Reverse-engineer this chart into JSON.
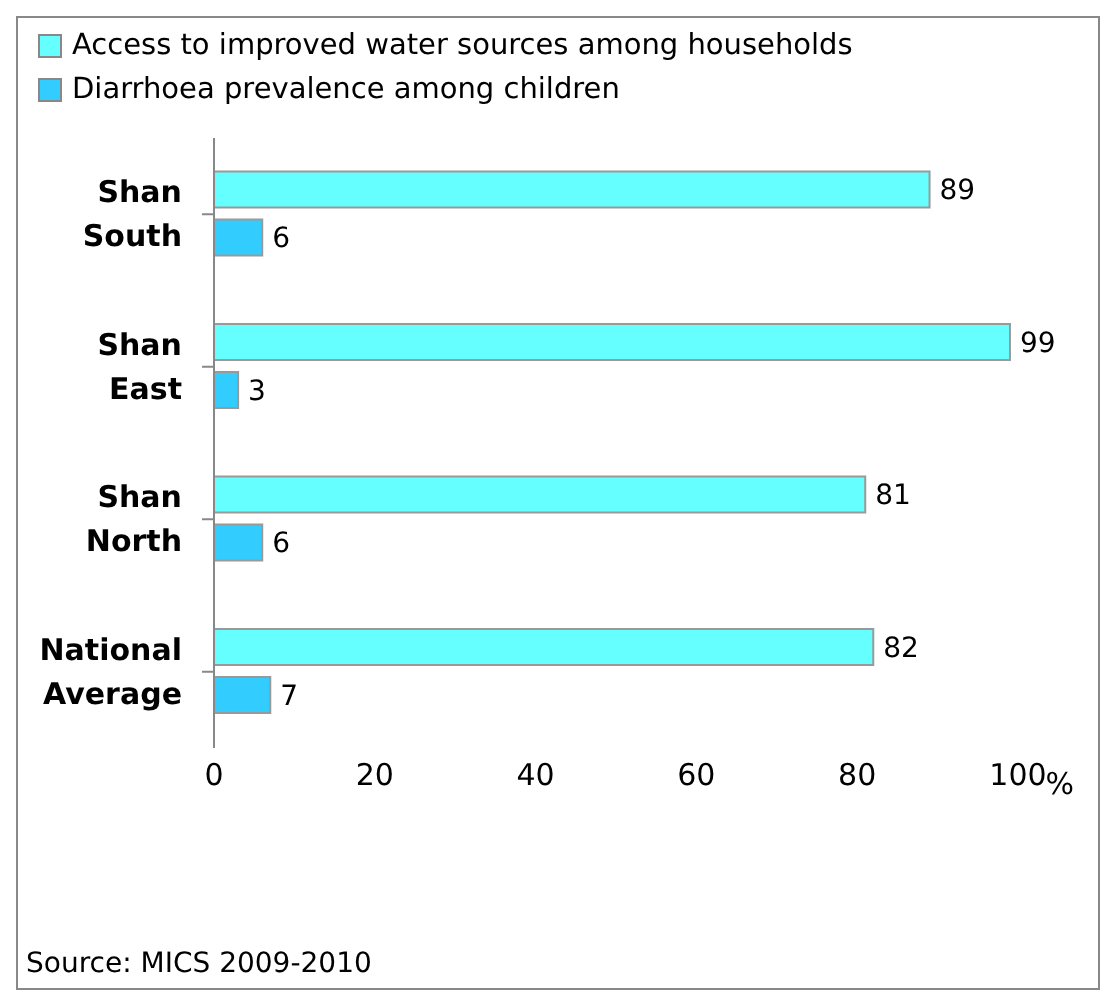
{
  "chart_data": {
    "type": "bar",
    "orientation": "horizontal",
    "categories": [
      "Shan South",
      "Shan East",
      "Shan North",
      "National Average"
    ],
    "series": [
      {
        "name": "Access to improved water sources among households",
        "color": "#66ffff",
        "values": [
          89,
          99,
          81,
          82
        ]
      },
      {
        "name": "Diarrhoea prevalence among children",
        "color": "#33ccff",
        "values": [
          6,
          3,
          6,
          7
        ]
      }
    ],
    "xlim": [
      0,
      100
    ],
    "xticks": [
      0,
      20,
      40,
      60,
      80,
      100
    ],
    "xlabel": "%",
    "data_labels": true,
    "grid": false,
    "legend": "top",
    "annotations": [
      "Source: MICS 2009-2010"
    ]
  }
}
